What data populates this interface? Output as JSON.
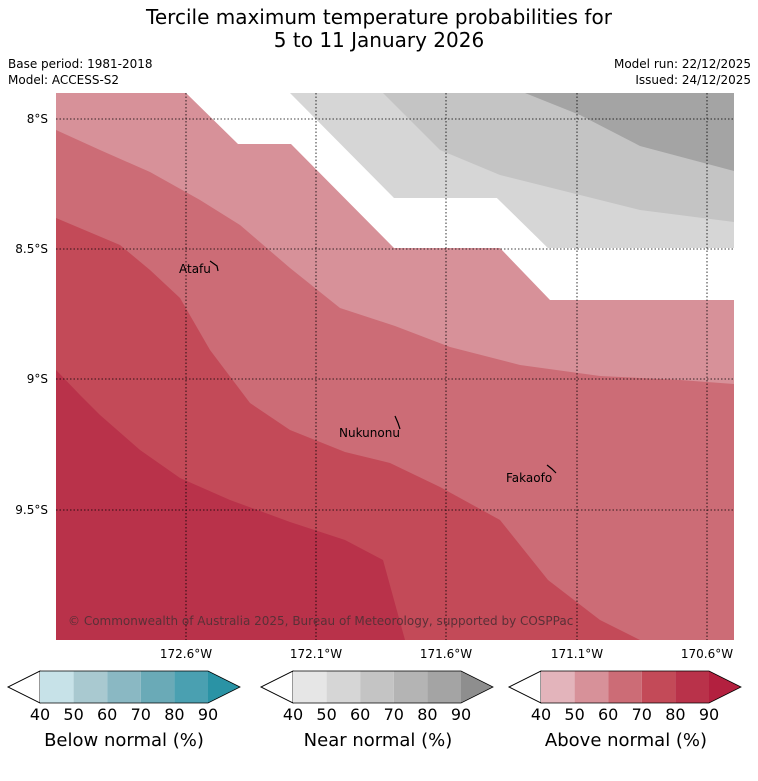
{
  "header": {
    "title_line1": "Tercile maximum temperature probabilities for",
    "title_line2": "5 to 11 January 2026",
    "base_period": "Base period: 1981-2018",
    "model": "Model: ACCESS-S2",
    "model_run": "Model run: 22/12/2025",
    "issued": "Issued: 24/12/2025"
  },
  "map": {
    "lat_labels": [
      "8°S",
      "8.5°S",
      "9°S",
      "9.5°S"
    ],
    "lon_labels": [
      "172.6°W",
      "172.1°W",
      "171.6°W",
      "171.1°W",
      "170.6°W"
    ],
    "places": {
      "atafu": "Atafu",
      "nukunonu": "Nukunonu",
      "fakaofo": "Fakaofo"
    },
    "copyright": "© Commonwealth of Australia 2025, Bureau of Meteorology, supported by COSPPac"
  },
  "legend": {
    "ticks": [
      "40",
      "50",
      "60",
      "70",
      "80",
      "90"
    ],
    "below": {
      "title": "Below normal (%)",
      "colors": [
        "#c7e2e8",
        "#a9c9d0",
        "#8ab8c3",
        "#6aaab7",
        "#4aa0b1",
        "#2a93a5"
      ]
    },
    "near": {
      "title": "Near normal (%)",
      "colors": [
        "#e6e6e6",
        "#d6d6d6",
        "#c4c4c4",
        "#b4b4b4",
        "#a4a4a4",
        "#8e8e8e"
      ]
    },
    "above": {
      "title": "Above normal (%)",
      "colors": [
        "#e3b4bb",
        "#d79199",
        "#cc6c76",
        "#c34a58",
        "#b9324a",
        "#b3203f"
      ]
    }
  }
}
